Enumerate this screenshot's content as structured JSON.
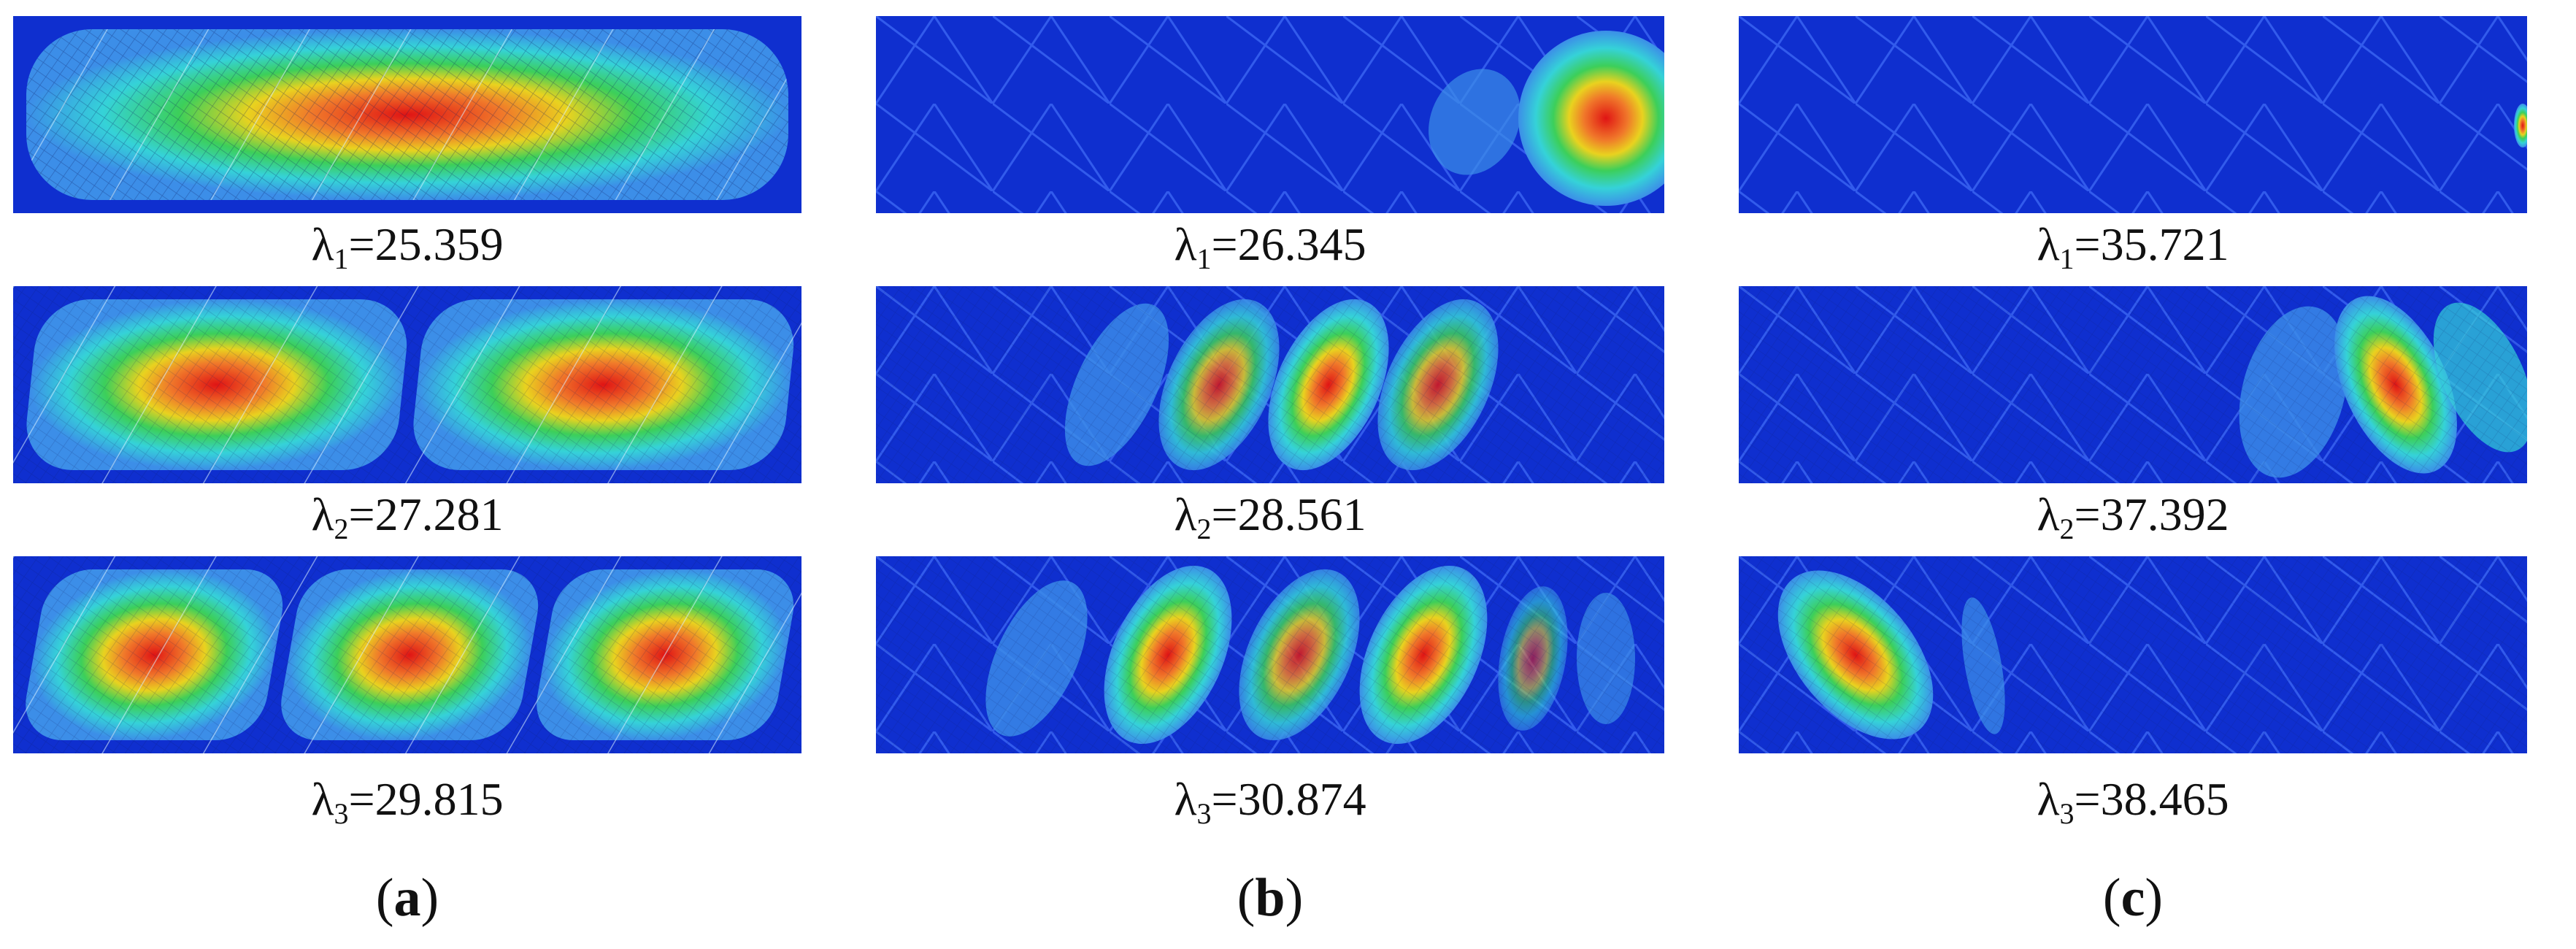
{
  "figure": {
    "columns": [
      {
        "label": "a",
        "modes": [
          {
            "symbol": "λ",
            "sub": "1",
            "value": "=25.359"
          },
          {
            "symbol": "λ",
            "sub": "2",
            "value": "=27.281"
          },
          {
            "symbol": "λ",
            "sub": "3",
            "value": "=29.815"
          }
        ]
      },
      {
        "label": "b",
        "modes": [
          {
            "symbol": "λ",
            "sub": "1",
            "value": "=26.345"
          },
          {
            "symbol": "λ",
            "sub": "2",
            "value": "=28.561"
          },
          {
            "symbol": "λ",
            "sub": "3",
            "value": "=30.874"
          }
        ]
      },
      {
        "label": "c",
        "modes": [
          {
            "symbol": "λ",
            "sub": "1",
            "value": "=35.721"
          },
          {
            "symbol": "λ",
            "sub": "2",
            "value": "=37.392"
          },
          {
            "symbol": "λ",
            "sub": "3",
            "value": "=38.465"
          }
        ]
      }
    ]
  },
  "colors": {
    "background": "#0f2fcf",
    "contour_outer": "#3c8ee8",
    "contour_cyan": "#35d2d8",
    "contour_green": "#3ccf5a",
    "contour_yellow": "#e9d21f",
    "contour_orange": "#f0782a",
    "contour_peak": "#e01414"
  }
}
